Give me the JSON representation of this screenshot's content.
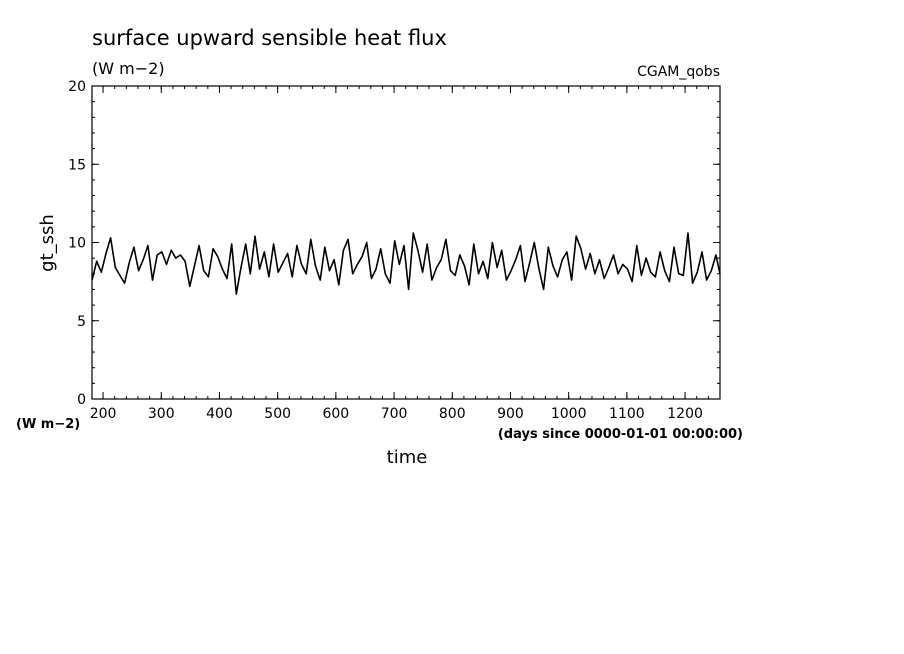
{
  "chart_data": {
    "type": "line",
    "title": "surface upward sensible heat flux",
    "units": "(W m−2)",
    "source_label": "CGAM_qobs",
    "ylabel": "gt_ssh",
    "y_units": "(W m−2)",
    "xlabel": "time",
    "x_units": "(days since 0000-01-01 00:00:00)",
    "xlim": [
      181,
      1260
    ],
    "ylim": [
      0,
      20
    ],
    "x_ticks": [
      200,
      300,
      400,
      500,
      600,
      700,
      800,
      900,
      1000,
      1100,
      1200
    ],
    "x_tick_labels": [
      "200",
      "300",
      "400",
      "500",
      "600",
      "700",
      "800",
      "900",
      "1000",
      "1100",
      "1200"
    ],
    "y_ticks": [
      0,
      5,
      10,
      15,
      20
    ],
    "y_tick_labels": [
      "0",
      "5",
      "10",
      "15",
      "20"
    ],
    "grid": false,
    "series": [
      {
        "color": "#000000",
        "x": [
          181,
          189,
          197,
          205,
          213,
          221,
          229,
          237,
          245,
          253,
          261,
          269,
          277,
          285,
          293,
          301,
          309,
          317,
          325,
          333,
          341,
          349,
          357,
          365,
          373,
          381,
          389,
          397,
          405,
          413,
          421,
          429,
          437,
          445,
          453,
          461,
          469,
          477,
          485,
          493,
          501,
          509,
          517,
          525,
          533,
          541,
          549,
          557,
          565,
          573,
          581,
          589,
          597,
          605,
          613,
          621,
          629,
          637,
          645,
          653,
          661,
          669,
          677,
          685,
          693,
          701,
          709,
          717,
          725,
          733,
          741,
          749,
          757,
          765,
          773,
          781,
          789,
          797,
          805,
          813,
          821,
          829,
          837,
          845,
          853,
          861,
          869,
          877,
          885,
          893,
          901,
          909,
          917,
          925,
          933,
          941,
          949,
          957,
          965,
          973,
          981,
          989,
          997,
          1005,
          1013,
          1021,
          1029,
          1037,
          1045,
          1053,
          1061,
          1069,
          1077,
          1085,
          1093,
          1101,
          1109,
          1117,
          1125,
          1133,
          1141,
          1149,
          1157,
          1165,
          1173,
          1181,
          1189,
          1197,
          1205,
          1213,
          1221,
          1229,
          1237,
          1245,
          1253,
          1260
        ],
        "y": [
          7.6,
          8.8,
          8.1,
          9.3,
          10.3,
          8.4,
          7.9,
          7.4,
          8.7,
          9.7,
          8.2,
          8.9,
          9.8,
          7.6,
          9.2,
          9.4,
          8.6,
          9.5,
          9.0,
          9.2,
          8.8,
          7.2,
          8.5,
          9.8,
          8.2,
          7.8,
          9.6,
          9.1,
          8.3,
          7.7,
          9.9,
          6.7,
          8.4,
          9.9,
          8.0,
          10.4,
          8.3,
          9.4,
          7.8,
          9.9,
          8.1,
          8.7,
          9.3,
          7.8,
          9.8,
          8.6,
          8.0,
          10.2,
          8.5,
          7.6,
          9.7,
          8.2,
          8.9,
          7.3,
          9.5,
          10.2,
          8.0,
          8.6,
          9.1,
          10.0,
          7.7,
          8.3,
          9.6,
          8.0,
          7.4,
          10.1,
          8.6,
          9.8,
          7.0,
          10.6,
          9.5,
          8.1,
          9.9,
          7.6,
          8.4,
          8.9,
          10.2,
          8.2,
          7.9,
          9.2,
          8.5,
          7.3,
          9.9,
          8.0,
          8.8,
          7.7,
          10.0,
          8.4,
          9.5,
          7.6,
          8.2,
          8.9,
          9.8,
          7.5,
          8.7,
          10.0,
          8.3,
          7.0,
          9.7,
          8.5,
          7.8,
          8.9,
          9.4,
          7.6,
          10.4,
          9.6,
          8.3,
          9.3,
          8.0,
          8.9,
          7.7,
          8.4,
          9.2,
          8.0,
          8.6,
          8.3,
          7.5,
          9.8,
          7.9,
          9.0,
          8.1,
          7.8,
          9.4,
          8.2,
          7.5,
          9.7,
          8.0,
          7.9,
          10.6,
          7.4,
          8.1,
          9.4,
          7.6,
          8.2,
          9.2,
          8.0
        ]
      }
    ]
  }
}
